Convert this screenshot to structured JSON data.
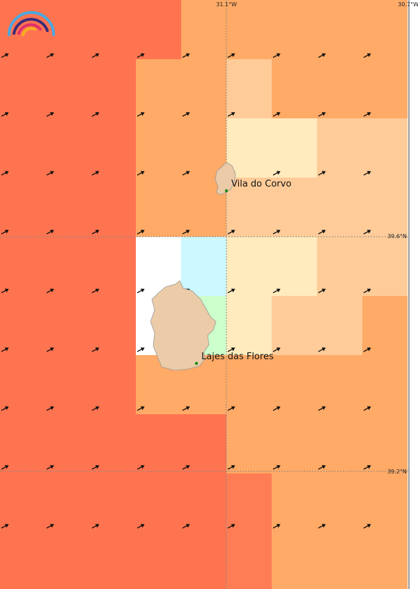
{
  "axes": {
    "lon_labels": [
      "31.1°W",
      "30.7°W"
    ],
    "lat_labels": [
      "39.6°N",
      "39.2°N"
    ]
  },
  "places": [
    {
      "name": "Vila do Corvo"
    },
    {
      "name": "Lajes das Flores"
    }
  ]
}
